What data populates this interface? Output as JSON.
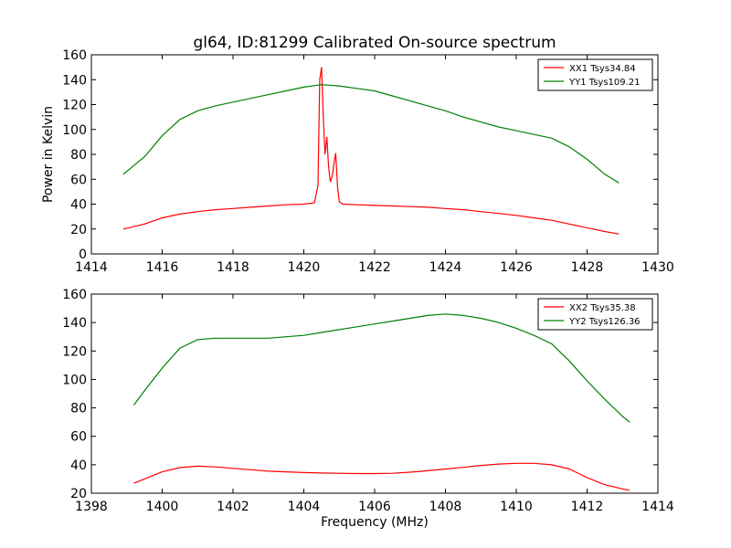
{
  "title": "gl64, ID:81299 Calibrated On-source spectrum",
  "chart_data": [
    {
      "type": "line",
      "title": "gl64, ID:81299 Calibrated On-source spectrum",
      "xlabel": "",
      "ylabel": "Power in Kelvin",
      "xlim": [
        1414,
        1430
      ],
      "ylim": [
        0,
        160
      ],
      "xticks": [
        1414,
        1416,
        1418,
        1420,
        1422,
        1424,
        1426,
        1428,
        1430
      ],
      "yticks": [
        0,
        20,
        40,
        60,
        80,
        100,
        120,
        140,
        160
      ],
      "legend_position": "top-right",
      "series": [
        {
          "name": "XX1 Tsys34.84",
          "color": "#ff0000",
          "x": [
            1414.9,
            1415.5,
            1416,
            1416.5,
            1417,
            1417.5,
            1418,
            1418.5,
            1419,
            1419.5,
            1420,
            1420.3,
            1420.4,
            1420.45,
            1420.5,
            1420.55,
            1420.6,
            1420.65,
            1420.7,
            1420.75,
            1420.8,
            1420.85,
            1420.9,
            1420.95,
            1421.0,
            1421.1,
            1421.5,
            1422,
            1422.5,
            1423,
            1423.5,
            1424,
            1424.5,
            1425,
            1425.5,
            1426,
            1426.5,
            1427,
            1427.5,
            1428,
            1428.5,
            1428.9
          ],
          "values": [
            20,
            24,
            29,
            32,
            34,
            35.5,
            36.5,
            37.5,
            38.5,
            39.5,
            40,
            41,
            55,
            140,
            150,
            110,
            80,
            94,
            70,
            58,
            62,
            72,
            81,
            55,
            42,
            40,
            39.5,
            39,
            38.5,
            38,
            37.5,
            36.5,
            35.5,
            34,
            32.5,
            31,
            29,
            27,
            24,
            21,
            18,
            16
          ]
        },
        {
          "name": "YY1 Tsys109.21",
          "color": "#008000",
          "x": [
            1414.9,
            1415.5,
            1416,
            1416.5,
            1417,
            1417.5,
            1418,
            1418.5,
            1419,
            1419.5,
            1420,
            1420.5,
            1421,
            1421.5,
            1422,
            1422.5,
            1423,
            1423.5,
            1424,
            1424.5,
            1425,
            1425.5,
            1426,
            1426.5,
            1427,
            1427.5,
            1428,
            1428.5,
            1428.9
          ],
          "values": [
            64,
            78,
            95,
            108,
            115,
            119,
            122,
            125,
            128,
            131,
            134,
            136,
            135,
            133,
            131,
            127,
            123,
            119,
            115,
            110,
            106,
            102,
            99,
            96,
            93,
            86,
            76,
            64,
            57
          ]
        }
      ]
    },
    {
      "type": "line",
      "title": "",
      "xlabel": "Frequency (MHz)",
      "ylabel": "",
      "xlim": [
        1398,
        1414
      ],
      "ylim": [
        20,
        160
      ],
      "xticks": [
        1398,
        1400,
        1402,
        1404,
        1406,
        1408,
        1410,
        1412,
        1414
      ],
      "yticks": [
        20,
        40,
        60,
        80,
        100,
        120,
        140,
        160
      ],
      "legend_position": "top-right",
      "series": [
        {
          "name": "XX2 Tsys35.38",
          "color": "#ff0000",
          "x": [
            1399.2,
            1399.5,
            1400,
            1400.5,
            1401,
            1401.5,
            1402,
            1402.5,
            1403,
            1403.5,
            1404,
            1404.5,
            1405,
            1405.5,
            1406,
            1406.5,
            1407,
            1407.5,
            1408,
            1408.5,
            1409,
            1409.5,
            1410,
            1410.5,
            1411,
            1411.5,
            1412,
            1412.5,
            1413,
            1413.2
          ],
          "values": [
            27,
            30,
            35,
            38,
            39,
            38.5,
            37.5,
            36.5,
            35.5,
            35,
            34.5,
            34.2,
            34,
            33.8,
            33.8,
            34,
            34.8,
            35.8,
            37,
            38.2,
            39.5,
            40.5,
            41,
            41,
            40,
            37,
            31,
            26,
            23,
            22
          ]
        },
        {
          "name": "YY2 Tsys126.36",
          "color": "#008000",
          "x": [
            1399.2,
            1399.5,
            1400,
            1400.5,
            1401,
            1401.5,
            1402,
            1402.5,
            1403,
            1403.5,
            1404,
            1404.5,
            1405,
            1405.5,
            1406,
            1406.5,
            1407,
            1407.5,
            1408,
            1408.5,
            1409,
            1409.5,
            1410,
            1410.5,
            1411,
            1411.5,
            1412,
            1412.5,
            1413,
            1413.2
          ],
          "values": [
            82,
            92,
            108,
            122,
            128,
            129,
            129,
            129,
            129,
            130,
            131,
            133,
            135,
            137,
            139,
            141,
            143,
            145,
            146,
            145,
            143,
            140,
            136,
            131,
            125,
            113,
            99,
            86,
            74,
            70
          ]
        }
      ]
    }
  ]
}
